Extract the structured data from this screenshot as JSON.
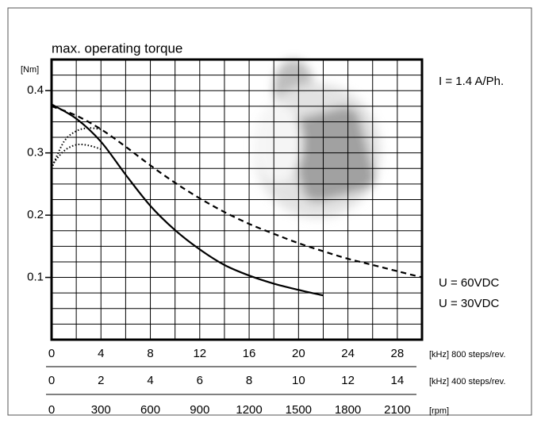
{
  "chart_data": {
    "type": "line",
    "title": "max. operating torque",
    "y_label": "[Nm]",
    "annotation": "I = 1.4 A/Ph.",
    "xlim": [
      0,
      30
    ],
    "ylim": [
      0,
      0.45
    ],
    "xticks": [
      0,
      4,
      8,
      12,
      16,
      20,
      24,
      28
    ],
    "xgrid": [
      2,
      4,
      6,
      8,
      10,
      12,
      14,
      16,
      18,
      20,
      22,
      24,
      26,
      28
    ],
    "yticks": [
      0.1,
      0.2,
      0.3,
      0.4
    ],
    "ygrid": [
      0.025,
      0.05,
      0.075,
      0.1,
      0.125,
      0.15,
      0.175,
      0.2,
      0.225,
      0.25,
      0.275,
      0.3,
      0.325,
      0.35,
      0.375,
      0.4,
      0.425
    ],
    "x_label": "[kHz] 800 steps/rev.",
    "x2lim": [
      0,
      15
    ],
    "x2ticks": [
      0,
      2,
      4,
      6,
      8,
      10,
      12,
      14
    ],
    "x2_label": "[kHz] 400 steps/rev.",
    "x3lim": [
      0,
      2250
    ],
    "x3ticks": [
      0,
      300,
      600,
      900,
      1200,
      1500,
      1800,
      2100
    ],
    "x3_label": "[rpm]",
    "series": [
      {
        "name": "U = 60VDC",
        "color": "#000000",
        "dash": "dashed",
        "x": [
          0,
          2,
          4,
          6,
          8,
          10,
          12,
          14,
          16,
          18,
          20,
          22,
          24,
          26,
          28,
          30
        ],
        "values": [
          0.375,
          0.36,
          0.338,
          0.31,
          0.28,
          0.252,
          0.227,
          0.205,
          0.186,
          0.17,
          0.155,
          0.142,
          0.13,
          0.12,
          0.11,
          0.1
        ]
      },
      {
        "name": "U = 30VDC",
        "color": "#000000",
        "dash": "solid",
        "x": [
          0,
          2,
          4,
          6,
          8,
          10,
          12,
          14,
          16,
          18,
          20,
          22
        ],
        "values": [
          0.378,
          0.355,
          0.318,
          0.265,
          0.215,
          0.176,
          0.145,
          0.12,
          0.103,
          0.09,
          0.08,
          0.071
        ]
      },
      {
        "color": "#000000",
        "dash": "dotted",
        "x": [
          0,
          1,
          2,
          3,
          4
        ],
        "values": [
          0.275,
          0.318,
          0.335,
          0.34,
          0.338
        ]
      },
      {
        "color": "#000000",
        "dash": "dotted",
        "x": [
          0,
          1,
          2,
          3,
          4
        ],
        "values": [
          0.28,
          0.303,
          0.313,
          0.312,
          0.306
        ]
      }
    ]
  }
}
